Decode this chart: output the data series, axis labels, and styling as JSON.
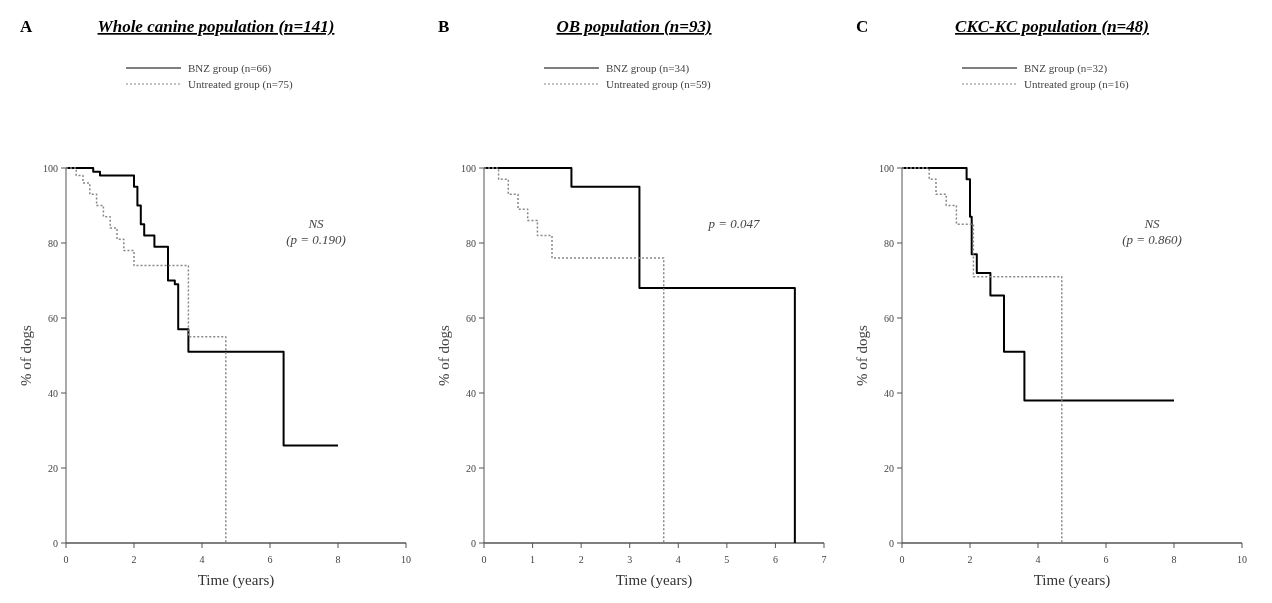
{
  "chart_data": [
    {
      "type": "step",
      "title": "Whole canine population (n=141)",
      "xlabel": "Time (years)",
      "ylabel": "% of dogs",
      "annotations": [
        "A",
        "NS",
        "(p = 0.190)"
      ],
      "xlim": [
        0,
        10
      ],
      "xticks": [
        0,
        2,
        4,
        6,
        8,
        10
      ],
      "ylim": [
        0,
        100
      ],
      "yticks": [
        0,
        20,
        40,
        60,
        80,
        100
      ],
      "legend": "top",
      "series": [
        {
          "name": "BNZ group (n=66)",
          "color": "#000000",
          "line_style": "solid",
          "x": [
            0,
            0.8,
            1.0,
            2.0,
            2.1,
            2.2,
            2.3,
            2.6,
            3.0,
            3.2,
            3.3,
            3.6,
            6.4,
            8
          ],
          "values": [
            100,
            99,
            98,
            95,
            90,
            85,
            82,
            79,
            70,
            69,
            57,
            51,
            26,
            26
          ]
        },
        {
          "name": "Untreated group (n=75)",
          "color": "#888888",
          "line_style": "dotted",
          "x": [
            0,
            0.3,
            0.5,
            0.7,
            0.9,
            1.1,
            1.3,
            1.5,
            1.7,
            2.0,
            3.6,
            4.7
          ],
          "values": [
            100,
            98,
            96,
            93,
            90,
            87,
            84,
            81,
            78,
            74,
            55,
            0
          ]
        }
      ]
    },
    {
      "type": "step",
      "title": "OB population (n=93)",
      "xlabel": "Time (years)",
      "ylabel": "% of dogs",
      "annotations": [
        "B",
        "p = 0.047"
      ],
      "xlim": [
        0,
        7
      ],
      "xticks": [
        0,
        1,
        2,
        3,
        4,
        5,
        6,
        7
      ],
      "ylim": [
        0,
        100
      ],
      "yticks": [
        0,
        20,
        40,
        60,
        80,
        100
      ],
      "legend": "top",
      "series": [
        {
          "name": "BNZ group (n=34)",
          "color": "#000000",
          "line_style": "solid",
          "x": [
            0,
            1.8,
            3.2,
            6.4
          ],
          "values": [
            100,
            95,
            68,
            0
          ]
        },
        {
          "name": "Untreated group (n=59)",
          "color": "#888888",
          "line_style": "dotted",
          "x": [
            0,
            0.3,
            0.5,
            0.7,
            0.9,
            1.1,
            1.4,
            3.7
          ],
          "values": [
            100,
            97,
            93,
            89,
            86,
            82,
            76,
            0
          ]
        }
      ]
    },
    {
      "type": "step",
      "title": "CKC-KC population (n=48)",
      "xlabel": "Time (years)",
      "ylabel": "% of dogs",
      "annotations": [
        "C",
        "NS",
        "(p = 0.860)"
      ],
      "xlim": [
        0,
        10
      ],
      "xticks": [
        0,
        2,
        4,
        6,
        8,
        10
      ],
      "ylim": [
        0,
        100
      ],
      "yticks": [
        0,
        20,
        40,
        60,
        80,
        100
      ],
      "legend": "top",
      "series": [
        {
          "name": "BNZ group (n=32)",
          "color": "#000000",
          "line_style": "solid",
          "x": [
            0,
            1.9,
            2.0,
            2.05,
            2.2,
            2.6,
            3.0,
            3.6,
            8
          ],
          "values": [
            100,
            97,
            87,
            77,
            72,
            66,
            51,
            38,
            38
          ]
        },
        {
          "name": "Untreated group (n=16)",
          "color": "#888888",
          "line_style": "dotted",
          "x": [
            0,
            0.8,
            1.0,
            1.3,
            1.6,
            2.1,
            4.7
          ],
          "values": [
            100,
            97,
            93,
            90,
            85,
            71,
            0
          ]
        }
      ]
    }
  ]
}
